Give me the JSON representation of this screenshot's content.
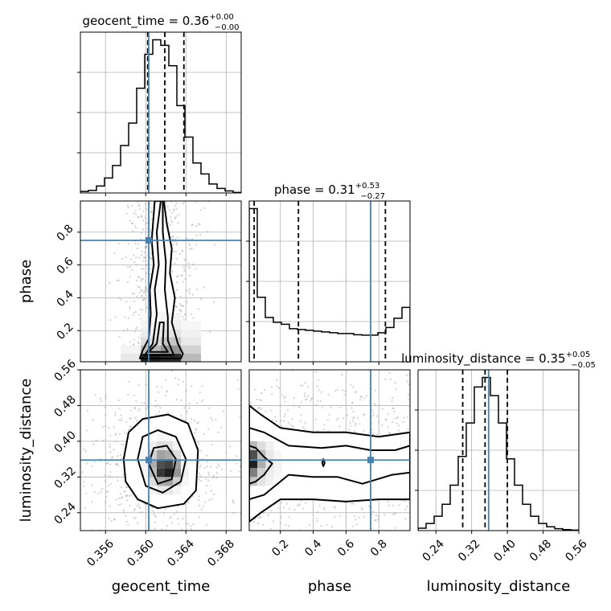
{
  "chart_data": {
    "type": "corner",
    "parameters": [
      "geocent_time",
      "phase",
      "luminosity_distance"
    ],
    "truths": [
      0.3603,
      0.75,
      0.358
    ],
    "colors": {
      "truth": "#4682b4",
      "line": "#000000",
      "grid": "#b0b0b0",
      "scatter": "#9a9a9a"
    },
    "axes": {
      "geocent_time": {
        "xlim": [
          0.3535,
          0.3695
        ],
        "ticks": [
          0.356,
          0.36,
          0.364,
          0.368
        ],
        "tick_labels": [
          "0.356",
          "0.360",
          "0.364",
          "0.368"
        ]
      },
      "phase": {
        "xlim": [
          0.01,
          0.99
        ],
        "ticks": [
          0.2,
          0.4,
          0.6,
          0.8
        ],
        "tick_labels": [
          "0.2",
          "0.4",
          "0.6",
          "0.8"
        ]
      },
      "luminosity_distance": {
        "xlim": [
          0.2,
          0.56
        ],
        "ticks": [
          0.24,
          0.32,
          0.4,
          0.48,
          0.56
        ],
        "tick_labels": [
          "0.24",
          "0.32",
          "0.40",
          "0.48",
          "0.56"
        ]
      }
    },
    "diagonal": [
      {
        "param": "geocent_time",
        "title": {
          "name": "geocent_time",
          "median": "0.36",
          "plus": "+0.00",
          "minus": "−0.00"
        },
        "quantiles": [
          0.3602,
          0.3619,
          0.3638
        ],
        "hist_edges": [
          0.3535,
          0.3543,
          0.3551,
          0.3559,
          0.3567,
          0.3575,
          0.3583,
          0.3591,
          0.3599,
          0.3607,
          0.3615,
          0.3623,
          0.3631,
          0.3639,
          0.3647,
          0.3655,
          0.3663,
          0.3671,
          0.3679,
          0.3687,
          0.3695
        ],
        "hist_counts": [
          3,
          5,
          14,
          30,
          55,
          95,
          140,
          210,
          278,
          307,
          296,
          255,
          175,
          112,
          60,
          38,
          18,
          9,
          4,
          1
        ]
      },
      {
        "param": "phase",
        "title": {
          "name": "phase",
          "median": "0.31",
          "plus": "+0.53",
          "minus": "−0.27"
        },
        "quantiles": [
          0.04,
          0.31,
          0.84
        ],
        "hist_edges": [
          0.01,
          0.059,
          0.108,
          0.157,
          0.206,
          0.255,
          0.304,
          0.353,
          0.402,
          0.451,
          0.5,
          0.549,
          0.598,
          0.647,
          0.696,
          0.745,
          0.794,
          0.843,
          0.892,
          0.941,
          0.99
        ],
        "hist_counts": [
          380,
          160,
          110,
          98,
          93,
          82,
          80,
          78,
          76,
          74,
          72,
          70,
          70,
          67,
          66,
          66,
          72,
          85,
          108,
          135
        ]
      },
      {
        "param": "luminosity_distance",
        "title": {
          "name": "luminosity_distance",
          "median": "0.35",
          "plus": "+0.05",
          "minus": "−0.05"
        },
        "quantiles": [
          0.3,
          0.35,
          0.4
        ],
        "hist_edges": [
          0.2,
          0.218,
          0.236,
          0.254,
          0.272,
          0.29,
          0.308,
          0.326,
          0.344,
          0.362,
          0.38,
          0.398,
          0.416,
          0.434,
          0.452,
          0.47,
          0.488,
          0.506,
          0.524,
          0.542,
          0.56
        ],
        "hist_counts": [
          5,
          15,
          30,
          55,
          95,
          155,
          225,
          300,
          320,
          282,
          225,
          150,
          95,
          55,
          30,
          15,
          8,
          4,
          2,
          1
        ]
      }
    ],
    "pairs": [
      {
        "x": "geocent_time",
        "y": "phase",
        "density": {
          "xbins": [
            0.3535,
            0.3555,
            0.3575,
            0.3595,
            0.3615,
            0.3635,
            0.3655,
            0.3675,
            0.3695
          ],
          "ybins": [
            0.01,
            0.06,
            0.11,
            0.16,
            0.21,
            0.26,
            0.31
          ],
          "levels": [
            [
              0,
              0,
              0.1,
              0.95,
              0.9,
              0.3,
              0,
              0
            ],
            [
              0,
              0,
              0.05,
              0.3,
              0.45,
              0.2,
              0,
              0
            ],
            [
              0,
              0,
              0,
              0.15,
              0.25,
              0.1,
              0,
              0
            ],
            [
              0,
              0,
              0,
              0.08,
              0.12,
              0.06,
              0,
              0
            ],
            [
              0,
              0,
              0,
              0.05,
              0.07,
              0.04,
              0,
              0
            ],
            [
              0,
              0,
              0,
              0.03,
              0.05,
              0.02,
              0,
              0
            ]
          ]
        },
        "contours": [
          [
            [
              0.3594,
              0.03
            ],
            [
              0.3597,
              0.08
            ],
            [
              0.3603,
              0.15
            ],
            [
              0.3605,
              0.3
            ],
            [
              0.3604,
              0.45
            ],
            [
              0.3608,
              0.6
            ],
            [
              0.3606,
              0.75
            ],
            [
              0.3609,
              0.99
            ],
            [
              0.3618,
              0.99
            ],
            [
              0.3621,
              0.85
            ],
            [
              0.3626,
              0.7
            ],
            [
              0.3624,
              0.55
            ],
            [
              0.3629,
              0.4
            ],
            [
              0.3626,
              0.25
            ],
            [
              0.3632,
              0.12
            ],
            [
              0.3637,
              0.06
            ],
            [
              0.3635,
              0.03
            ],
            [
              0.3594,
              0.03
            ]
          ],
          [
            [
              0.3599,
              0.05
            ],
            [
              0.3607,
              0.12
            ],
            [
              0.3611,
              0.3
            ],
            [
              0.3609,
              0.45
            ],
            [
              0.3613,
              0.6
            ],
            [
              0.3611,
              0.8
            ],
            [
              0.3615,
              0.99
            ],
            [
              0.3617,
              0.99
            ],
            [
              0.3617,
              0.8
            ],
            [
              0.362,
              0.62
            ],
            [
              0.3619,
              0.45
            ],
            [
              0.3622,
              0.28
            ],
            [
              0.3622,
              0.14
            ],
            [
              0.3626,
              0.08
            ],
            [
              0.3628,
              0.05
            ],
            [
              0.3599,
              0.05
            ]
          ],
          [
            [
              0.3603,
              0.07
            ],
            [
              0.3611,
              0.12
            ],
            [
              0.3614,
              0.25
            ],
            [
              0.3618,
              0.25
            ],
            [
              0.3617,
              0.12
            ],
            [
              0.3622,
              0.07
            ],
            [
              0.3603,
              0.07
            ]
          ]
        ],
        "scatter_seed": 7
      },
      {
        "x": "geocent_time",
        "y": "luminosity_distance",
        "density": {
          "xbins": [
            0.3595,
            0.3603,
            0.3611,
            0.3619,
            0.3627,
            0.3635,
            0.3643
          ],
          "ybins": [
            0.28,
            0.3,
            0.32,
            0.34,
            0.36,
            0.38,
            0.4,
            0.42
          ],
          "levels": [
            [
              0,
              0.05,
              0.1,
              0.1,
              0.05,
              0
            ],
            [
              0.02,
              0.15,
              0.35,
              0.4,
              0.2,
              0.04
            ],
            [
              0.04,
              0.3,
              0.85,
              0.95,
              0.45,
              0.06
            ],
            [
              0.05,
              0.35,
              0.75,
              0.8,
              0.4,
              0.05
            ],
            [
              0.03,
              0.2,
              0.4,
              0.35,
              0.15,
              0.02
            ],
            [
              0.01,
              0.08,
              0.15,
              0.12,
              0.05,
              0
            ],
            [
              0,
              0.02,
              0.04,
              0.03,
              0.01,
              0
            ]
          ]
        },
        "contours": [
          [
            [
              0.3578,
              0.36
            ],
            [
              0.3583,
              0.42
            ],
            [
              0.3597,
              0.45
            ],
            [
              0.3622,
              0.46
            ],
            [
              0.3642,
              0.44
            ],
            [
              0.3652,
              0.38
            ],
            [
              0.365,
              0.29
            ],
            [
              0.3638,
              0.26
            ],
            [
              0.3612,
              0.25
            ],
            [
              0.3592,
              0.27
            ],
            [
              0.358,
              0.31
            ],
            [
              0.3578,
              0.36
            ]
          ],
          [
            [
              0.3592,
              0.36
            ],
            [
              0.3597,
              0.41
            ],
            [
              0.3612,
              0.425
            ],
            [
              0.363,
              0.41
            ],
            [
              0.364,
              0.36
            ],
            [
              0.3635,
              0.31
            ],
            [
              0.3617,
              0.285
            ],
            [
              0.36,
              0.3
            ],
            [
              0.3592,
              0.36
            ]
          ],
          [
            [
              0.3603,
              0.35
            ],
            [
              0.3608,
              0.385
            ],
            [
              0.3621,
              0.39
            ],
            [
              0.363,
              0.36
            ],
            [
              0.3626,
              0.315
            ],
            [
              0.3612,
              0.305
            ],
            [
              0.3603,
              0.35
            ]
          ]
        ],
        "scatter_seed": 11
      },
      {
        "x": "phase",
        "y": "luminosity_distance",
        "density": {
          "xbins": [
            0.01,
            0.06,
            0.11,
            0.16,
            0.21
          ],
          "ybins": [
            0.3,
            0.32,
            0.34,
            0.36,
            0.38,
            0.4
          ],
          "levels": [
            [
              0.25,
              0.12,
              0.06,
              0.03
            ],
            [
              0.55,
              0.2,
              0.08,
              0.04
            ],
            [
              0.95,
              0.35,
              0.12,
              0.05
            ],
            [
              0.75,
              0.3,
              0.1,
              0.04
            ],
            [
              0.3,
              0.15,
              0.06,
              0.02
            ]
          ]
        },
        "contours": [
          [
            [
              0.01,
              0.48
            ],
            [
              0.08,
              0.46
            ],
            [
              0.2,
              0.43
            ],
            [
              0.4,
              0.42
            ],
            [
              0.6,
              0.42
            ],
            [
              0.8,
              0.41
            ],
            [
              0.99,
              0.42
            ],
            [
              0.99,
              0.27
            ],
            [
              0.8,
              0.27
            ],
            [
              0.6,
              0.265
            ],
            [
              0.4,
              0.27
            ],
            [
              0.2,
              0.27
            ],
            [
              0.08,
              0.24
            ],
            [
              0.01,
              0.22
            ],
            [
              0.01,
              0.48
            ]
          ],
          [
            [
              0.01,
              0.43
            ],
            [
              0.1,
              0.42
            ],
            [
              0.25,
              0.39
            ],
            [
              0.45,
              0.385
            ],
            [
              0.6,
              0.39
            ],
            [
              0.75,
              0.38
            ],
            [
              0.9,
              0.38
            ],
            [
              0.99,
              0.39
            ],
            [
              0.99,
              0.33
            ],
            [
              0.88,
              0.325
            ],
            [
              0.7,
              0.305
            ],
            [
              0.55,
              0.32
            ],
            [
              0.4,
              0.32
            ],
            [
              0.25,
              0.325
            ],
            [
              0.1,
              0.28
            ],
            [
              0.01,
              0.27
            ],
            [
              0.01,
              0.43
            ]
          ],
          [
            [
              0.01,
              0.39
            ],
            [
              0.05,
              0.385
            ],
            [
              0.1,
              0.365
            ],
            [
              0.15,
              0.35
            ],
            [
              0.1,
              0.325
            ],
            [
              0.05,
              0.31
            ],
            [
              0.01,
              0.305
            ],
            [
              0.01,
              0.39
            ]
          ],
          [
            [
              0.455,
              0.352
            ],
            [
              0.462,
              0.36
            ],
            [
              0.47,
              0.352
            ],
            [
              0.462,
              0.344
            ],
            [
              0.455,
              0.352
            ]
          ]
        ],
        "scatter_seed": 23
      }
    ]
  }
}
